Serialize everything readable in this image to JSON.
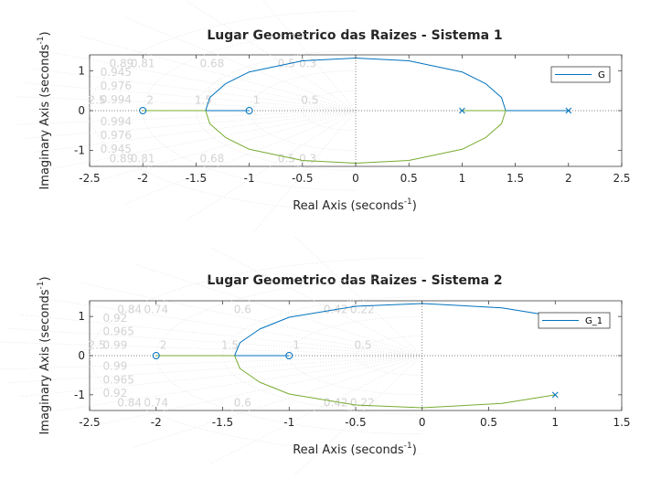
{
  "chart_data": [
    {
      "type": "line",
      "title": "Lugar Geometrico das Raizes - Sistema 1",
      "xlabel": "Real Axis (seconds",
      "ylabel": "Imaginary Axis (seconds",
      "label_exponent": "-1",
      "label_close": ")",
      "xlim": [
        -2.5,
        2.5
      ],
      "ylim": [
        -1.4,
        1.4
      ],
      "xticks": [
        -2.5,
        -2,
        -1.5,
        -1,
        -0.5,
        0,
        0.5,
        1,
        1.5,
        2,
        2.5
      ],
      "xtick_labels": [
        "-2.5",
        "-2",
        "-1.5",
        "-1",
        "-0.5",
        "0",
        "0.5",
        "1",
        "1.5",
        "2",
        "2.5"
      ],
      "yticks": [
        1,
        0,
        -1
      ],
      "ytick_labels": [
        "1",
        "0",
        "-1"
      ],
      "legend": {
        "label": "G",
        "placement": "top-right"
      },
      "poles": [
        [
          1,
          0
        ],
        [
          2,
          0
        ]
      ],
      "zeros": [
        [
          -2,
          0
        ],
        [
          -1,
          0
        ]
      ],
      "branches": [
        {
          "color": "#0072bd",
          "points": [
            [
              -1,
              0
            ],
            [
              -1.41,
              0
            ],
            [
              -1.37,
              0.33
            ],
            [
              -1.22,
              0.68
            ],
            [
              -1.0,
              0.97
            ],
            [
              -0.5,
              1.25
            ],
            [
              0,
              1.32
            ],
            [
              0.5,
              1.25
            ],
            [
              1.0,
              0.97
            ],
            [
              1.22,
              0.68
            ],
            [
              1.37,
              0.33
            ],
            [
              1.41,
              0
            ],
            [
              2,
              0
            ]
          ]
        },
        {
          "color": "#77ac30",
          "points": [
            [
              -2,
              0
            ],
            [
              -1.41,
              0
            ],
            [
              -1.37,
              -0.33
            ],
            [
              -1.22,
              -0.68
            ],
            [
              -1.0,
              -0.97
            ],
            [
              -0.5,
              -1.25
            ],
            [
              0,
              -1.32
            ],
            [
              0.5,
              -1.25
            ],
            [
              1.0,
              -0.97
            ],
            [
              1.22,
              -0.68
            ],
            [
              1.37,
              -0.33
            ],
            [
              1.41,
              0
            ],
            [
              1,
              0
            ]
          ]
        }
      ],
      "grid_labels": {
        "damping_upper": [
          "0.89",
          "0.81",
          "0.68",
          "0.5",
          "0.3"
        ],
        "damping_middle": [
          "0.945",
          "0.976",
          "0.994",
          "0.994",
          "0.976",
          "0.945"
        ],
        "damping_lower": [
          "0.89",
          "0.81",
          "0.68",
          "0.5",
          "0.3"
        ],
        "freq": [
          "2.5",
          "2",
          "1.5",
          "1",
          "0.5"
        ]
      }
    },
    {
      "type": "line",
      "title": "Lugar Geometrico das Raizes - Sistema 2",
      "xlabel": "Real Axis (seconds",
      "ylabel": "Imaginary Axis (seconds",
      "label_exponent": "-1",
      "label_close": ")",
      "xlim": [
        -2.5,
        1.5
      ],
      "ylim": [
        -1.4,
        1.4
      ],
      "xticks": [
        -2.5,
        -2,
        -1.5,
        -1,
        -0.5,
        0,
        0.5,
        1,
        1.5
      ],
      "xtick_labels": [
        "-2.5",
        "-2",
        "-1.5",
        "-1",
        "-0.5",
        "0",
        "0.5",
        "1",
        "1.5"
      ],
      "yticks": [
        1,
        0,
        -1
      ],
      "ytick_labels": [
        "1",
        "0",
        "-1"
      ],
      "legend": {
        "label": "G_1",
        "placement": "top-right"
      },
      "poles": [
        [
          1,
          1
        ],
        [
          1,
          -1
        ]
      ],
      "zeros": [
        [
          -2,
          0
        ],
        [
          -1,
          0
        ]
      ],
      "branches": [
        {
          "color": "#0072bd",
          "points": [
            [
              1,
              1
            ],
            [
              0.6,
              1.22
            ],
            [
              0,
              1.33
            ],
            [
              -0.5,
              1.26
            ],
            [
              -1.0,
              0.98
            ],
            [
              -1.22,
              0.68
            ],
            [
              -1.37,
              0.33
            ],
            [
              -1.41,
              0
            ],
            [
              -1,
              0
            ]
          ]
        },
        {
          "color": "#77ac30",
          "points": [
            [
              1,
              -1
            ],
            [
              0.6,
              -1.22
            ],
            [
              0,
              -1.33
            ],
            [
              -0.5,
              -1.26
            ],
            [
              -1.0,
              -0.98
            ],
            [
              -1.22,
              -0.68
            ],
            [
              -1.37,
              -0.33
            ],
            [
              -1.41,
              0
            ],
            [
              -2,
              0
            ]
          ]
        }
      ],
      "grid_labels": {
        "damping_upper": [
          "0.84",
          "0.74",
          "0.6",
          "0.42",
          "0.22"
        ],
        "damping_middle": [
          "0.92",
          "0.965",
          "0.99",
          "0.99",
          "0.965",
          "0.92"
        ],
        "damping_lower": [
          "0.84",
          "0.74",
          "0.6",
          "0.42",
          "0.22"
        ],
        "freq": [
          "2.5",
          "2",
          "1.5",
          "1",
          "0.5"
        ]
      }
    }
  ]
}
